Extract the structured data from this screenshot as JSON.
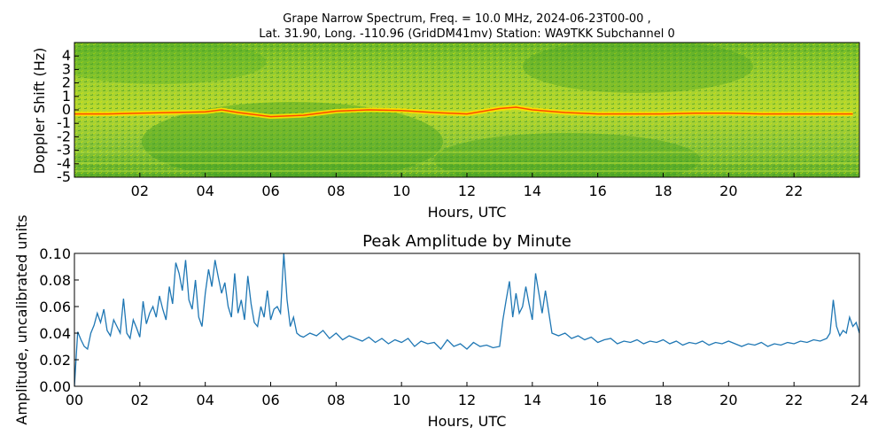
{
  "figure": {
    "spectrogram_title_line1": "Grape Narrow Spectrum, Freq. = 10.0 MHz, 2024-06-23T00-00 ,",
    "spectrogram_title_line2": "Lat.  31.90, Long. -110.96 (GridDM41mv) Station: WA9TKK Subchannel 0"
  },
  "chart_data": [
    {
      "type": "heatmap",
      "title": "Grape Narrow Spectrum, Freq. = 10.0 MHz, 2024-06-23T00-00 , Lat.  31.90, Long. -110.96 (GridDM41mv) Station: WA9TKK Subchannel 0",
      "xlabel": "Hours, UTC",
      "ylabel": "Doppler Shift (Hz)",
      "xlim": [
        0,
        24
      ],
      "ylim": [
        -5,
        5
      ],
      "xticks": [
        "02",
        "04",
        "06",
        "08",
        "10",
        "12",
        "14",
        "16",
        "18",
        "20",
        "22"
      ],
      "yticks": [
        "4",
        "3",
        "2",
        "1",
        "0",
        "-1",
        "-2",
        "-3",
        "-4",
        "-5"
      ],
      "colors": {
        "low": "#2e8b1e",
        "mid": "#c8e000",
        "high": "#ffe000",
        "peak": "#ff3000"
      },
      "carrier_trace": {
        "hours": [
          0,
          1,
          2,
          3,
          4,
          4.5,
          5,
          6,
          7,
          8,
          9,
          10,
          11,
          12,
          13,
          13.5,
          14,
          15,
          16,
          17,
          18,
          19,
          20,
          21,
          22,
          23,
          23.8
        ],
        "doppler_hz": [
          -0.3,
          -0.3,
          -0.25,
          -0.2,
          -0.15,
          0.0,
          -0.2,
          -0.5,
          -0.4,
          -0.1,
          0.0,
          -0.05,
          -0.2,
          -0.3,
          0.1,
          0.2,
          0.0,
          -0.2,
          -0.3,
          -0.3,
          -0.3,
          -0.25,
          -0.25,
          -0.3,
          -0.3,
          -0.3,
          -0.3
        ]
      }
    },
    {
      "type": "line",
      "title": "Peak Amplitude by Minute",
      "xlabel": "Hours, UTC",
      "ylabel": "Amplitude, uncalibrated units",
      "xlim": [
        0,
        24
      ],
      "ylim": [
        0,
        0.1
      ],
      "xticks": [
        "00",
        "02",
        "04",
        "06",
        "08",
        "10",
        "12",
        "14",
        "16",
        "18",
        "20",
        "22",
        "24"
      ],
      "yticks": [
        "0.10",
        "0.08",
        "0.06",
        "0.04",
        "0.02",
        "0.00"
      ],
      "grid": false,
      "series": [
        {
          "color": "#1f77b4",
          "x": [
            0,
            0.1,
            0.2,
            0.3,
            0.4,
            0.5,
            0.6,
            0.7,
            0.8,
            0.9,
            1,
            1.1,
            1.2,
            1.3,
            1.4,
            1.5,
            1.6,
            1.7,
            1.8,
            1.9,
            2,
            2.1,
            2.2,
            2.3,
            2.4,
            2.5,
            2.6,
            2.7,
            2.8,
            2.9,
            3,
            3.1,
            3.2,
            3.3,
            3.4,
            3.5,
            3.6,
            3.7,
            3.8,
            3.9,
            4,
            4.1,
            4.2,
            4.3,
            4.4,
            4.5,
            4.6,
            4.7,
            4.8,
            4.9,
            5,
            5.1,
            5.2,
            5.3,
            5.4,
            5.5,
            5.6,
            5.7,
            5.8,
            5.9,
            6,
            6.1,
            6.2,
            6.3,
            6.4,
            6.5,
            6.6,
            6.7,
            6.8,
            6.9,
            7,
            7.2,
            7.4,
            7.6,
            7.8,
            8,
            8.2,
            8.4,
            8.6,
            8.8,
            9,
            9.2,
            9.4,
            9.6,
            9.8,
            10,
            10.2,
            10.4,
            10.6,
            10.8,
            11,
            11.2,
            11.4,
            11.6,
            11.8,
            12,
            12.2,
            12.4,
            12.6,
            12.8,
            13,
            13.1,
            13.2,
            13.3,
            13.4,
            13.5,
            13.6,
            13.7,
            13.8,
            13.9,
            14,
            14.1,
            14.2,
            14.3,
            14.4,
            14.6,
            14.8,
            15,
            15.2,
            15.4,
            15.6,
            15.8,
            16,
            16.2,
            16.4,
            16.6,
            16.8,
            17,
            17.2,
            17.4,
            17.6,
            17.8,
            18,
            18.2,
            18.4,
            18.6,
            18.8,
            19,
            19.2,
            19.4,
            19.6,
            19.8,
            20,
            20.2,
            20.4,
            20.6,
            20.8,
            21,
            21.2,
            21.4,
            21.6,
            21.8,
            22,
            22.2,
            22.4,
            22.6,
            22.8,
            23,
            23.1,
            23.2,
            23.3,
            23.4,
            23.5,
            23.6,
            23.7,
            23.8,
            23.9,
            24
          ],
          "values": [
            0.0,
            0.041,
            0.035,
            0.03,
            0.028,
            0.04,
            0.046,
            0.055,
            0.048,
            0.058,
            0.042,
            0.038,
            0.05,
            0.045,
            0.04,
            0.066,
            0.04,
            0.036,
            0.05,
            0.044,
            0.037,
            0.064,
            0.047,
            0.055,
            0.06,
            0.052,
            0.068,
            0.058,
            0.05,
            0.075,
            0.062,
            0.093,
            0.085,
            0.072,
            0.095,
            0.065,
            0.058,
            0.08,
            0.052,
            0.045,
            0.07,
            0.088,
            0.075,
            0.095,
            0.082,
            0.07,
            0.078,
            0.06,
            0.052,
            0.085,
            0.055,
            0.065,
            0.05,
            0.083,
            0.062,
            0.048,
            0.045,
            0.06,
            0.052,
            0.072,
            0.05,
            0.058,
            0.06,
            0.055,
            0.1,
            0.065,
            0.045,
            0.052,
            0.04,
            0.038,
            0.037,
            0.04,
            0.038,
            0.042,
            0.036,
            0.04,
            0.035,
            0.038,
            0.036,
            0.034,
            0.037,
            0.033,
            0.036,
            0.032,
            0.035,
            0.033,
            0.036,
            0.03,
            0.034,
            0.032,
            0.033,
            0.028,
            0.035,
            0.03,
            0.032,
            0.028,
            0.033,
            0.03,
            0.031,
            0.029,
            0.03,
            0.05,
            0.065,
            0.079,
            0.052,
            0.07,
            0.055,
            0.06,
            0.075,
            0.062,
            0.05,
            0.085,
            0.07,
            0.055,
            0.072,
            0.04,
            0.038,
            0.04,
            0.036,
            0.038,
            0.035,
            0.037,
            0.033,
            0.035,
            0.036,
            0.032,
            0.034,
            0.033,
            0.035,
            0.032,
            0.034,
            0.033,
            0.035,
            0.032,
            0.034,
            0.031,
            0.033,
            0.032,
            0.034,
            0.031,
            0.033,
            0.032,
            0.034,
            0.032,
            0.03,
            0.032,
            0.031,
            0.033,
            0.03,
            0.032,
            0.031,
            0.033,
            0.032,
            0.034,
            0.033,
            0.035,
            0.034,
            0.036,
            0.04,
            0.065,
            0.045,
            0.038,
            0.042,
            0.04,
            0.052,
            0.045,
            0.048,
            0.04
          ]
        }
      ]
    }
  ]
}
